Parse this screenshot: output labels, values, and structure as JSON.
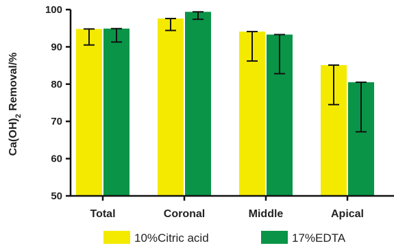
{
  "chart_data": {
    "type": "bar",
    "ylabel_main": "Ca(OH)",
    "ylabel_sub": "2",
    "ylabel_tail": " Removal/%",
    "ylim": [
      50,
      100
    ],
    "yticks": [
      50,
      60,
      70,
      80,
      90,
      100
    ],
    "categories": [
      "Total",
      "Coronal",
      "Middle",
      "Apical"
    ],
    "series": [
      {
        "name": "10%Citric acid",
        "color": "#f4ea00",
        "values": [
          94.8,
          97.6,
          94.1,
          85.1
        ],
        "error_low": [
          90.5,
          94.4,
          86.2,
          74.5
        ],
        "error_high": [
          94.8,
          97.6,
          94.1,
          85.1
        ]
      },
      {
        "name": "17%EDTA",
        "color": "#0a9447",
        "values": [
          94.9,
          99.4,
          93.3,
          80.5
        ],
        "error_low": [
          91.3,
          97.4,
          82.8,
          67.2
        ],
        "error_high": [
          94.9,
          99.4,
          93.3,
          80.5
        ]
      }
    ],
    "legend_position": "bottom"
  }
}
